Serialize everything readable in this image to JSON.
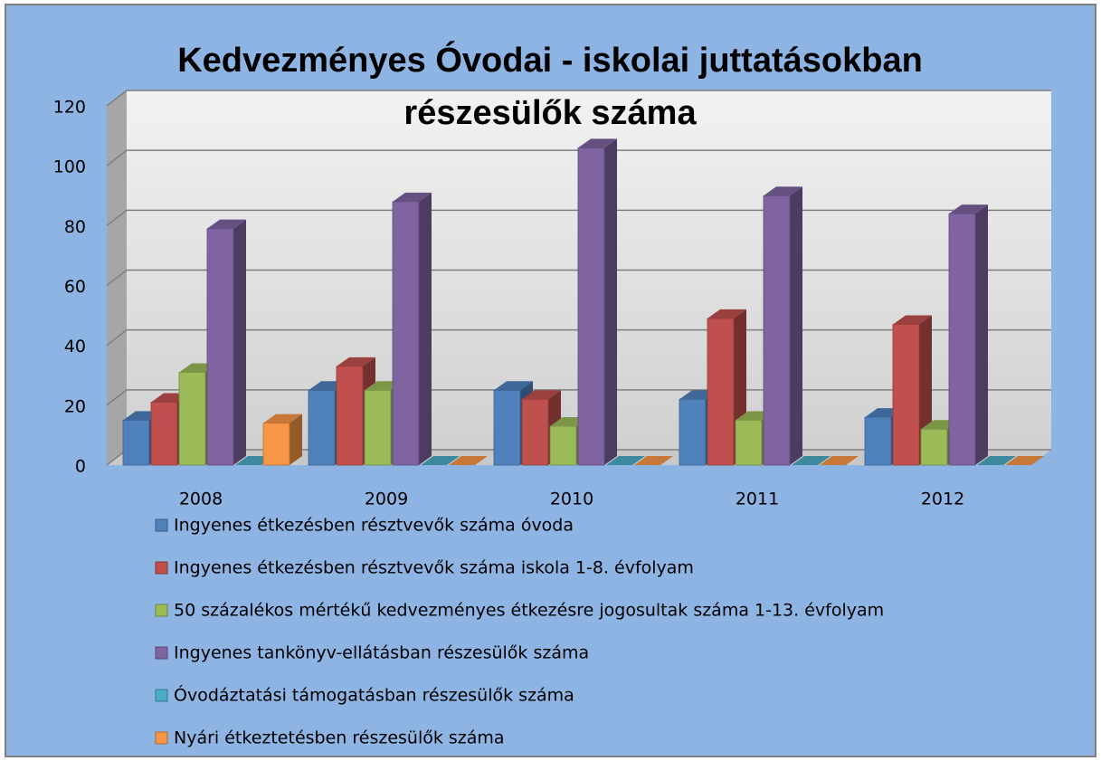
{
  "chart_data": {
    "type": "bar3d",
    "title": "Kedvezményes Óvodai - iskolai juttatásokban részesülők száma",
    "categories": [
      "2008",
      "2009",
      "2010",
      "2011",
      "2012"
    ],
    "series": [
      {
        "name": "Ingyenes étkezésben résztvevők száma óvoda",
        "color": "#4f81bd",
        "values": [
          15,
          25,
          25,
          22,
          16
        ]
      },
      {
        "name": "Ingyenes étkezésben résztvevők száma iskola 1-8. évfolyam",
        "color": "#c0504d",
        "values": [
          21,
          33,
          22,
          49,
          47
        ]
      },
      {
        "name": "50 százalékos mértékű kedvezményes étkezésre jogosultak száma 1-13. évfolyam",
        "color": "#9bbb59",
        "values": [
          31,
          25,
          13,
          15,
          12
        ]
      },
      {
        "name": "Ingyenes tankönyv-ellátásban részesülők száma",
        "color": "#8064a2",
        "values": [
          79,
          88,
          106,
          90,
          84
        ]
      },
      {
        "name": "Óvodáztatási támogatásban részesülők száma",
        "color": "#4bacc6",
        "values": [
          0,
          0,
          0,
          0,
          0
        ]
      },
      {
        "name": "Nyári étkeztetésben részesülők száma",
        "color": "#f79646",
        "values": [
          14,
          0,
          0,
          0,
          0
        ]
      }
    ],
    "ylim": [
      0,
      120
    ],
    "yticks": [
      0,
      20,
      40,
      60,
      80,
      100,
      120
    ],
    "grid": true
  }
}
